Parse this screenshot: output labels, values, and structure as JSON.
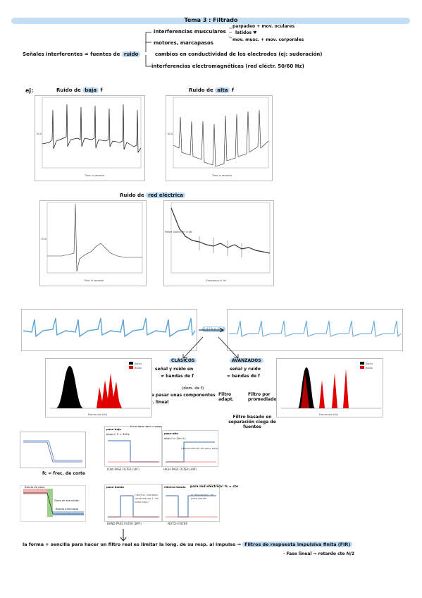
{
  "header": {
    "title": "Tema 3 : Filtrado"
  },
  "intro": {
    "main_left": "Señales interferentes = fuentes de",
    "main_hl": "ruido",
    "branch_muscular": "interferencias musculares",
    "muscular_sub1": "parpadeo + mov. oculares",
    "muscular_sub2": "latidos ♥",
    "muscular_sub3": "mov. musc. + mov. corporales",
    "branch_motors": "motores, marcapasos",
    "branch_conductivity": "cambios en conductividad de los electrodos (ej: sudoración)",
    "branch_em": "interferencias electromagnéticas (red eléctr. 50/60 Hz)"
  },
  "examples": {
    "ej": "ej:",
    "low_prefix": "Ruido de",
    "low_hl": "baja",
    "low_suffix": "f",
    "high_prefix": "Ruido de",
    "high_hl": "alta",
    "high_suffix": "f",
    "red_prefix": "Ruido de",
    "red_hl": "red eléctrica",
    "plot1_xlabel": "Time in seconds",
    "plot2_xlabel": "Time in seconds",
    "plot3_xlabel": "Time in seconds",
    "plot4_xlabel": "Frequency in Hz",
    "plot_ylabel": "ECG",
    "plot4_ylabel": "Power Spectrum in dB"
  },
  "filter": {
    "label": "FILTRO",
    "classic": "CLÁSICOS",
    "classic_l1": "señal y ruido en",
    "classic_l2": "≠ bandas de f",
    "classic_l3": "(dom. de f)",
    "classic_l4": "· deja pasar unas componentes",
    "classic_l5": "· sist. lineal",
    "advanced": "AVANZADOS",
    "adv_l1": "señal y ruido",
    "adv_l2": "= bandas de f",
    "adv_f1": "Filtro adapt.",
    "adv_f2": "Filtro por promediado",
    "adv_f3": "Filtro basado en separación ciega de fuentes",
    "legend_signal": "Señal",
    "legend_noise": "Ruido",
    "freq_label": "Frecuencia (Hz)"
  },
  "filters": {
    "fc_note": "fc = frec. de corte",
    "lp_title": "paso-bajo",
    "lp_note": "bajas f: 0 < 30Hz",
    "lp_caption": "LOW PASS FILTER (LPF)",
    "time_note": "En el dom. de t = pulso",
    "hp_title": "paso-alto",
    "hp_note": "altas f > (2π+1)",
    "hp_note2": "(dependiendo de paso bajo)",
    "hp_caption": "HIGH PASS FILTER (HPF)",
    "bp_title": "paso-banda",
    "bp_note": "(cte(f.sc) simepla-combinando L. de paso bajo)",
    "bp_caption": "BAND PASS FILTER (BPF)",
    "notch_title": "elimina-banda",
    "notch_note": "para red eléctrica! fc = cte",
    "notch_note2": "al desplazam. de paso-banda",
    "notch_caption": "NOTCH FILTER",
    "zone_pass": "Banda de paso",
    "zone_transition": "Zona de transición",
    "zone_stop": "Banda eliminada",
    "fc_symbol": "fc"
  },
  "conclusion": {
    "text": "la forma + sencilla para hacer un filtro real es limitar la long. de su resp. al impulso ⇒",
    "hl": "Filtros de respuesta impulsiva finita (FIR)",
    "note": "· Fase lineal ⇒ retardo cte N/2"
  },
  "colors": {
    "accent": "#bcd9f3",
    "signal": "#000000",
    "noise": "#e00000",
    "ecg_blue": "#5aa3d6"
  }
}
